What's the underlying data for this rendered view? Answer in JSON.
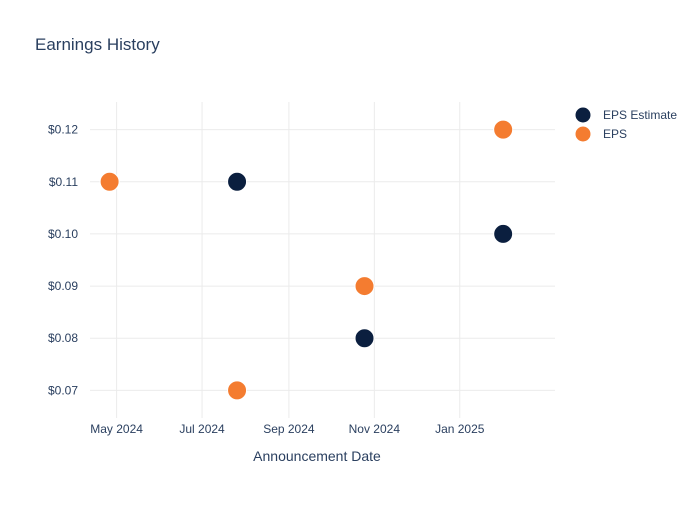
{
  "chart_data": {
    "type": "scatter",
    "title": "Earnings History",
    "xlabel": "Announcement Date",
    "ylabel": "",
    "x_ticks": [
      "May 2024",
      "Jul 2024",
      "Sep 2024",
      "Nov 2024",
      "Jan 2025"
    ],
    "x_tick_dates": [
      "2024-05-01",
      "2024-07-01",
      "2024-09-01",
      "2024-11-01",
      "2025-01-01"
    ],
    "xlim": [
      "2024-04-12",
      "2025-03-10"
    ],
    "y_ticks": [
      "$0.07",
      "$0.08",
      "$0.09",
      "$0.10",
      "$0.11",
      "$0.12"
    ],
    "y_tick_values": [
      0.07,
      0.08,
      0.09,
      0.1,
      0.11,
      0.12
    ],
    "ylim": [
      0.0647,
      0.1253
    ],
    "grid": true,
    "legend_position": "top-right",
    "series": [
      {
        "name": "EPS Estimate",
        "color": "#0b1f3f",
        "points": [
          {
            "x": "2024-04-26",
            "y": 0.11
          },
          {
            "x": "2024-07-26",
            "y": 0.11
          },
          {
            "x": "2024-10-25",
            "y": 0.08
          },
          {
            "x": "2025-02-01",
            "y": 0.1
          }
        ]
      },
      {
        "name": "EPS",
        "color": "#f47c30",
        "points": [
          {
            "x": "2024-04-26",
            "y": 0.11
          },
          {
            "x": "2024-07-26",
            "y": 0.07
          },
          {
            "x": "2024-10-25",
            "y": 0.09
          },
          {
            "x": "2025-02-01",
            "y": 0.12
          }
        ]
      }
    ]
  }
}
